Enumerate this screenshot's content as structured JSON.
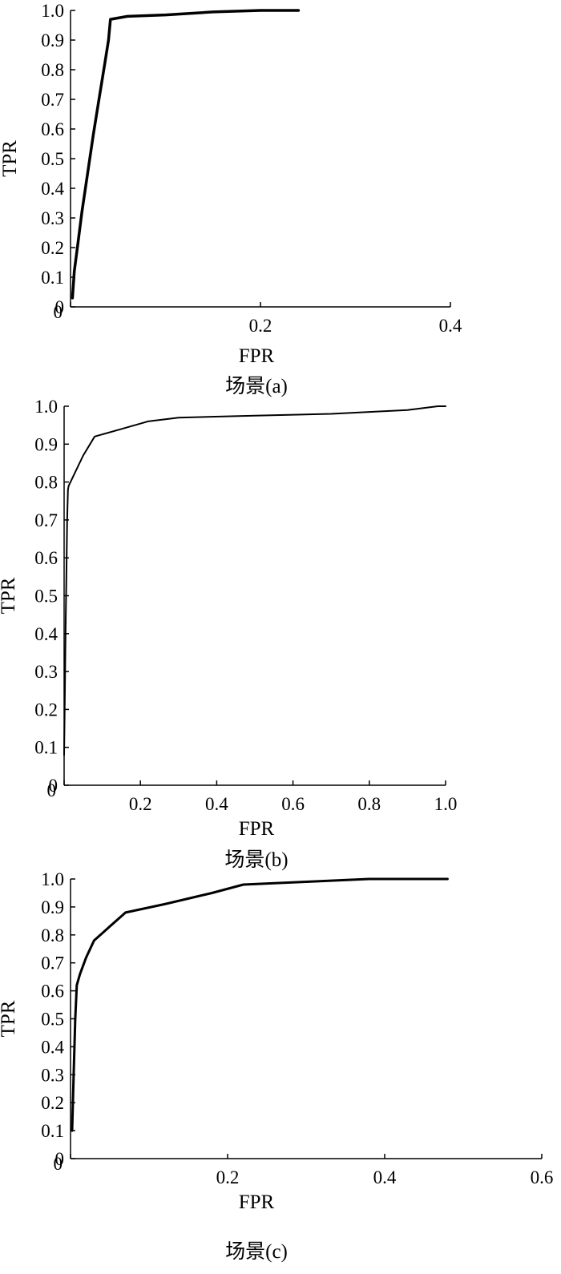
{
  "figure_captions": [
    "场景(a)",
    "场景(b)",
    "场景(c)"
  ],
  "chart_data": [
    {
      "type": "line",
      "caption": "场景(a)",
      "xlabel": "FPR",
      "ylabel": "TPR",
      "xlim": [
        0,
        0.4
      ],
      "ylim": [
        0,
        1.0
      ],
      "x_ticks": [
        0,
        0.2,
        0.4
      ],
      "x_tick_labels": [
        "0",
        "0.2",
        "0.4"
      ],
      "y_ticks": [
        0,
        0.1,
        0.2,
        0.3,
        0.4,
        0.5,
        0.6,
        0.7,
        0.8,
        0.9,
        1.0
      ],
      "y_tick_labels": [
        "0",
        "0.1",
        "0.2",
        "0.3",
        "0.4",
        "0.5",
        "0.6",
        "0.7",
        "0.8",
        "0.9",
        "1.0"
      ],
      "grid": false,
      "series": [
        {
          "x": [
            0.002,
            0.004,
            0.008,
            0.012,
            0.018,
            0.024,
            0.03,
            0.036,
            0.04,
            0.042,
            0.06,
            0.1,
            0.15,
            0.2,
            0.24
          ],
          "y": [
            0.03,
            0.12,
            0.22,
            0.32,
            0.45,
            0.58,
            0.7,
            0.82,
            0.9,
            0.97,
            0.98,
            0.985,
            0.995,
            1.0,
            1.0
          ]
        }
      ]
    },
    {
      "type": "line",
      "caption": "场景(b)",
      "xlabel": "FPR",
      "ylabel": "TPR",
      "xlim": [
        0,
        1.0
      ],
      "ylim": [
        0,
        1.0
      ],
      "x_ticks": [
        0,
        0.2,
        0.4,
        0.6,
        0.8,
        1.0
      ],
      "x_tick_labels": [
        "0",
        "0.2",
        "0.4",
        "0.6",
        "0.8",
        "1.0"
      ],
      "y_ticks": [
        0,
        0.1,
        0.2,
        0.3,
        0.4,
        0.5,
        0.6,
        0.7,
        0.8,
        0.9,
        1.0
      ],
      "y_tick_labels": [
        "0",
        "0.1",
        "0.2",
        "0.3",
        "0.4",
        "0.5",
        "0.6",
        "0.7",
        "0.8",
        "0.9",
        "1.0"
      ],
      "grid": false,
      "series": [
        {
          "x": [
            0.0,
            0.002,
            0.004,
            0.006,
            0.008,
            0.01,
            0.012,
            0.05,
            0.08,
            0.15,
            0.22,
            0.3,
            0.5,
            0.7,
            0.9,
            0.98,
            1.0
          ],
          "y": [
            0.08,
            0.25,
            0.42,
            0.56,
            0.7,
            0.78,
            0.79,
            0.87,
            0.92,
            0.94,
            0.96,
            0.97,
            0.975,
            0.98,
            0.99,
            1.0,
            1.0
          ]
        }
      ]
    },
    {
      "type": "line",
      "caption": "场景(c)",
      "xlabel": "FPR",
      "ylabel": "TPR",
      "xlim": [
        0,
        0.6
      ],
      "ylim": [
        0,
        1.0
      ],
      "x_ticks": [
        0,
        0.2,
        0.4,
        0.6
      ],
      "x_tick_labels": [
        "0",
        "0.2",
        "0.4",
        "0.6"
      ],
      "y_ticks": [
        0,
        0.1,
        0.2,
        0.3,
        0.4,
        0.5,
        0.6,
        0.7,
        0.8,
        0.9,
        1.0
      ],
      "y_tick_labels": [
        "0",
        "0.1",
        "0.2",
        "0.3",
        "0.4",
        "0.5",
        "0.6",
        "0.7",
        "0.8",
        "0.9",
        "1.0"
      ],
      "grid": false,
      "series": [
        {
          "x": [
            0.002,
            0.004,
            0.006,
            0.008,
            0.012,
            0.02,
            0.03,
            0.05,
            0.07,
            0.12,
            0.18,
            0.22,
            0.3,
            0.38,
            0.48
          ],
          "y": [
            0.1,
            0.3,
            0.5,
            0.62,
            0.66,
            0.72,
            0.78,
            0.83,
            0.88,
            0.91,
            0.95,
            0.98,
            0.99,
            1.0,
            1.0
          ]
        }
      ]
    }
  ]
}
